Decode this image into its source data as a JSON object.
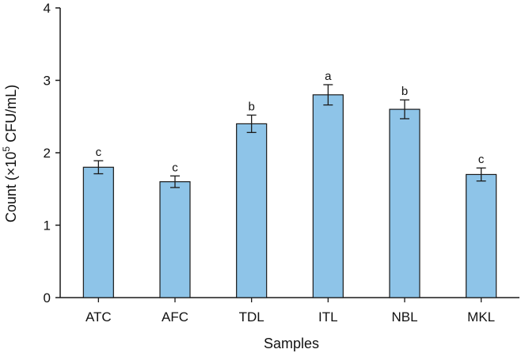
{
  "chart_data": {
    "type": "bar",
    "categories": [
      "ATC",
      "AFC",
      "TDL",
      "ITL",
      "NBL",
      "MKL"
    ],
    "values": [
      1.8,
      1.6,
      2.4,
      2.8,
      2.6,
      1.7
    ],
    "errors": [
      0.09,
      0.08,
      0.12,
      0.14,
      0.13,
      0.09
    ],
    "significance_letters": [
      "c",
      "c",
      "b",
      "a",
      "b",
      "c"
    ],
    "xlabel": "Samples",
    "ylabel": {
      "prefix": "Count (×10",
      "superscript": "5",
      "suffix": " CFU/mL)"
    },
    "ylim": [
      0,
      4
    ],
    "yticks": [
      "0",
      "1",
      "2",
      "3",
      "4"
    ],
    "grid": false,
    "colors": {
      "bar_fill": "#8EC4E8",
      "bar_stroke": "#1a1a1a",
      "axis": "#1a1a1a"
    }
  }
}
